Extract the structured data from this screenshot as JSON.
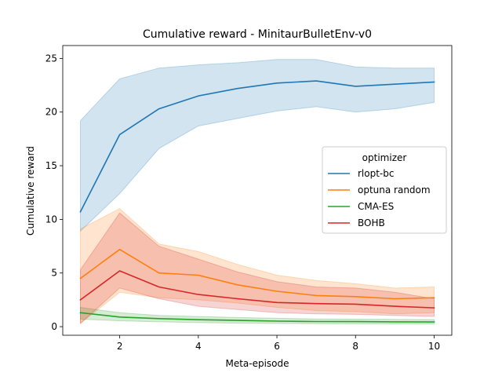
{
  "chart_data": {
    "type": "line",
    "title": "Cumulative reward - MinitaurBulletEnv-v0",
    "xlabel": "Meta-episode",
    "ylabel": "Cumulative reward",
    "xlim": [
      0.55,
      10.45
    ],
    "ylim": [
      -0.8,
      26.2
    ],
    "xticks": [
      2,
      4,
      6,
      8,
      10
    ],
    "yticks": [
      0,
      5,
      10,
      15,
      20,
      25
    ],
    "grid": false,
    "legend": {
      "title": "optimizer",
      "placement": "center-right"
    },
    "x": [
      1,
      2,
      3,
      4,
      5,
      6,
      7,
      8,
      9,
      10
    ],
    "series": [
      {
        "name": "rlopt-bc",
        "color": "#1f77b4",
        "values": [
          10.7,
          17.9,
          20.3,
          21.5,
          22.2,
          22.7,
          22.9,
          22.4,
          22.6,
          22.8
        ],
        "lower": [
          8.9,
          12.4,
          16.6,
          18.7,
          19.4,
          20.1,
          20.5,
          20.0,
          20.3,
          20.9
        ],
        "upper": [
          19.2,
          23.1,
          24.1,
          24.4,
          24.6,
          24.9,
          24.9,
          24.2,
          24.1,
          24.1
        ]
      },
      {
        "name": "optuna random",
        "color": "#ff7f0e",
        "values": [
          4.5,
          7.2,
          5.0,
          4.8,
          3.9,
          3.3,
          2.9,
          2.8,
          2.6,
          2.7
        ],
        "lower": [
          0.3,
          3.2,
          2.7,
          2.5,
          2.2,
          1.8,
          1.5,
          1.4,
          1.2,
          1.3
        ],
        "upper": [
          9.1,
          11.0,
          7.7,
          7.0,
          5.8,
          4.8,
          4.3,
          4.0,
          3.6,
          3.7
        ]
      },
      {
        "name": "CMA-ES",
        "color": "#2ca02c",
        "values": [
          1.3,
          0.9,
          0.75,
          0.65,
          0.58,
          0.52,
          0.48,
          0.47,
          0.45,
          0.44
        ],
        "lower": [
          0.7,
          0.55,
          0.45,
          0.38,
          0.33,
          0.3,
          0.28,
          0.27,
          0.26,
          0.25
        ],
        "upper": [
          1.8,
          1.3,
          1.05,
          0.95,
          0.85,
          0.78,
          0.72,
          0.7,
          0.68,
          0.66
        ]
      },
      {
        "name": "BOHB",
        "color": "#d62728",
        "values": [
          2.5,
          5.2,
          3.7,
          3.0,
          2.6,
          2.25,
          2.15,
          2.1,
          1.9,
          1.75
        ],
        "lower": [
          0.3,
          3.6,
          2.6,
          1.9,
          1.6,
          1.3,
          1.2,
          1.15,
          1.05,
          0.95
        ],
        "upper": [
          5.3,
          10.6,
          7.5,
          6.3,
          5.1,
          4.2,
          3.7,
          3.6,
          3.2,
          2.6
        ]
      }
    ]
  }
}
